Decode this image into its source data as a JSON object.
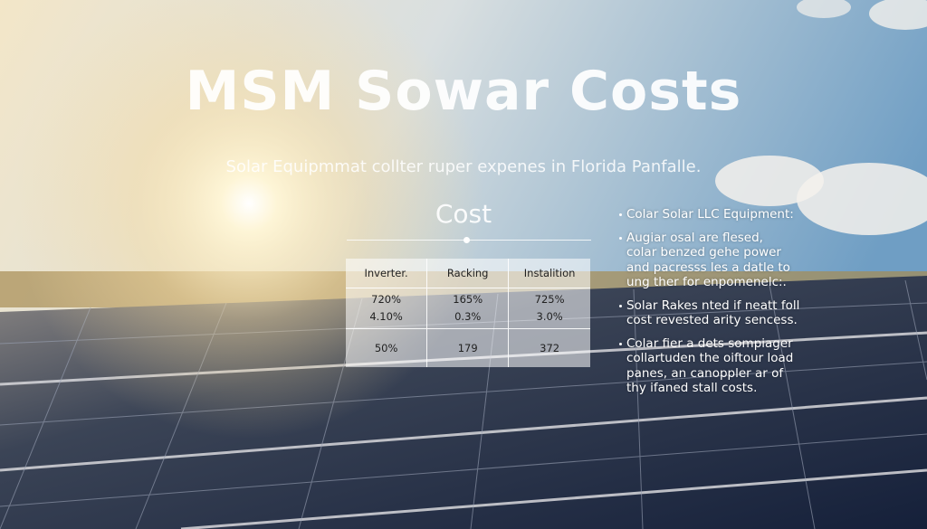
{
  "header": {
    "title": "MSM Sowar Costs",
    "subtitle": "Solar Equipmmat collter ruper expenes in Florida Panfalle."
  },
  "table": {
    "heading": "Cost",
    "columns": [
      "Inverter.",
      "Racking",
      "Instalition"
    ],
    "rows": [
      [
        [
          "720%",
          "4.10%"
        ],
        [
          "165%",
          "0.3%"
        ],
        [
          "725%",
          "3.0%"
        ]
      ],
      [
        "50%",
        "179",
        "372"
      ]
    ]
  },
  "notes": [
    [
      "Colar Solar LLC Equipment:"
    ],
    [
      "Augiar osal are flesed,",
      "colar benzed gehe power",
      "and pacresss les a datle to",
      "ung ther for enpomenelc:."
    ],
    [
      "Solar Rakes nted if neatt foll",
      "cost revested arity sencess."
    ],
    [
      "Colar fier a dets sompiager",
      "collartuden the oiftour load",
      "panes, an canoppler ar of",
      "thy ifaned stall costs."
    ]
  ]
}
